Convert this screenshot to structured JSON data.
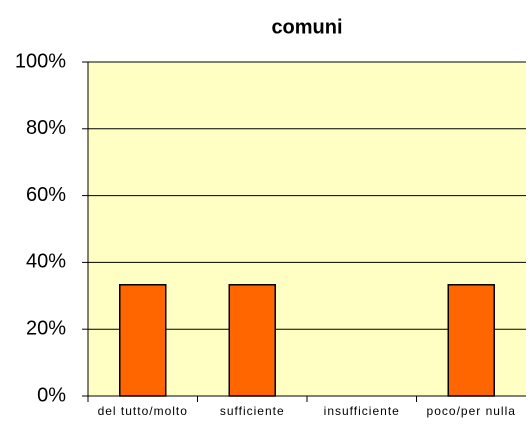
{
  "chart_data": {
    "type": "bar",
    "title": "comuni",
    "categories": [
      "del tutto/molto",
      "sufficiente",
      "insufficiente",
      "poco/per nulla"
    ],
    "values": [
      33.3,
      33.3,
      0,
      33.3
    ],
    "color": "#ff6600",
    "ylim": [
      0,
      100
    ],
    "yticks": [
      {
        "value": 0,
        "label": "0%"
      },
      {
        "value": 20,
        "label": "20%"
      },
      {
        "value": 40,
        "label": "40%"
      },
      {
        "value": 60,
        "label": "60%"
      },
      {
        "value": 80,
        "label": "80%"
      },
      {
        "value": 100,
        "label": "100%"
      }
    ],
    "grid": true
  }
}
